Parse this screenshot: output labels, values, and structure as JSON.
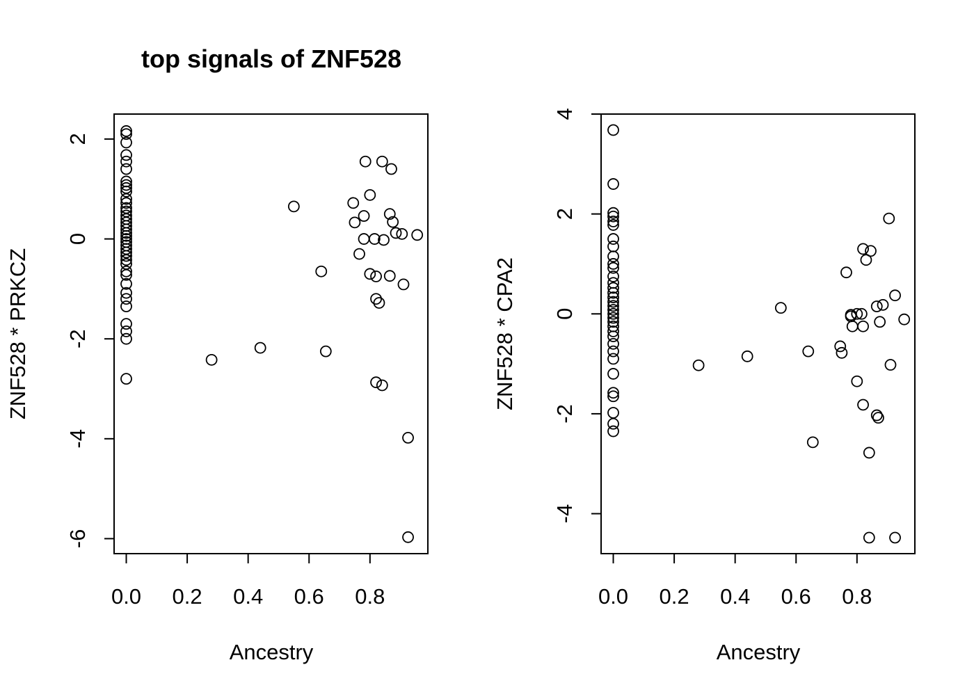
{
  "figure": {
    "title": "top signals of ZNF528"
  },
  "chart_data": [
    {
      "type": "scatter",
      "title": "top signals of ZNF528",
      "xlabel": "Ancestry",
      "ylabel": "ZNF528 * PRKCZ",
      "xlim": [
        -0.04,
        0.99
      ],
      "ylim": [
        -6.3,
        2.5
      ],
      "xticks": [
        0.0,
        0.2,
        0.4,
        0.6,
        0.8
      ],
      "xtick_labels": [
        "0.0",
        "0.2",
        "0.4",
        "0.6",
        "0.8"
      ],
      "yticks": [
        -6,
        -4,
        -2,
        0,
        2
      ],
      "ytick_labels": [
        "-6",
        "-4",
        "-2",
        "0",
        "2"
      ],
      "grid": false,
      "series": [
        {
          "points": [
            [
              0.0,
              2.16
            ],
            [
              0.0,
              2.1
            ],
            [
              0.0,
              1.93
            ],
            [
              0.0,
              1.68
            ],
            [
              0.0,
              1.55
            ],
            [
              0.0,
              1.4
            ],
            [
              0.0,
              1.15
            ],
            [
              0.0,
              1.08
            ],
            [
              0.0,
              1.02
            ],
            [
              0.0,
              0.95
            ],
            [
              0.0,
              0.8
            ],
            [
              0.0,
              0.72
            ],
            [
              0.0,
              0.62
            ],
            [
              0.0,
              0.55
            ],
            [
              0.0,
              0.47
            ],
            [
              0.0,
              0.4
            ],
            [
              0.0,
              0.33
            ],
            [
              0.0,
              0.26
            ],
            [
              0.0,
              0.19
            ],
            [
              0.0,
              0.12
            ],
            [
              0.0,
              0.06
            ],
            [
              0.0,
              0.0
            ],
            [
              0.0,
              -0.06
            ],
            [
              0.0,
              -0.13
            ],
            [
              0.0,
              -0.2
            ],
            [
              0.0,
              -0.27
            ],
            [
              0.0,
              -0.34
            ],
            [
              0.0,
              -0.42
            ],
            [
              0.0,
              -0.5
            ],
            [
              0.0,
              -0.65
            ],
            [
              0.0,
              -0.72
            ],
            [
              0.0,
              -0.9
            ],
            [
              0.0,
              -1.08
            ],
            [
              0.0,
              -1.2
            ],
            [
              0.0,
              -1.35
            ],
            [
              0.0,
              -1.7
            ],
            [
              0.0,
              -1.85
            ],
            [
              0.0,
              -2.0
            ],
            [
              0.0,
              -2.8
            ],
            [
              0.28,
              -2.42
            ],
            [
              0.44,
              -2.18
            ],
            [
              0.55,
              0.65
            ],
            [
              0.64,
              -0.65
            ],
            [
              0.655,
              -2.25
            ],
            [
              0.745,
              0.72
            ],
            [
              0.75,
              0.33
            ],
            [
              0.765,
              -0.3
            ],
            [
              0.78,
              0.46
            ],
            [
              0.78,
              0.0
            ],
            [
              0.785,
              1.55
            ],
            [
              0.8,
              0.88
            ],
            [
              0.8,
              -0.7
            ],
            [
              0.815,
              0.0
            ],
            [
              0.82,
              -0.75
            ],
            [
              0.82,
              -1.2
            ],
            [
              0.82,
              -2.87
            ],
            [
              0.83,
              -1.28
            ],
            [
              0.84,
              -2.93
            ],
            [
              0.84,
              1.55
            ],
            [
              0.845,
              -0.02
            ],
            [
              0.865,
              0.5
            ],
            [
              0.865,
              -0.74
            ],
            [
              0.87,
              1.4
            ],
            [
              0.875,
              0.34
            ],
            [
              0.885,
              0.12
            ],
            [
              0.905,
              0.1
            ],
            [
              0.91,
              -0.91
            ],
            [
              0.925,
              -3.98
            ],
            [
              0.925,
              -5.97
            ],
            [
              0.955,
              0.08
            ]
          ]
        }
      ]
    },
    {
      "type": "scatter",
      "title": "",
      "xlabel": "Ancestry",
      "ylabel": "ZNF528 * CPA2",
      "xlim": [
        -0.04,
        0.99
      ],
      "ylim": [
        -4.8,
        4.0
      ],
      "xticks": [
        0.0,
        0.2,
        0.4,
        0.6,
        0.8
      ],
      "xtick_labels": [
        "0.0",
        "0.2",
        "0.4",
        "0.6",
        "0.8"
      ],
      "yticks": [
        -4,
        -2,
        0,
        2,
        4
      ],
      "ytick_labels": [
        "-4",
        "-2",
        "0",
        "2",
        "4"
      ],
      "grid": false,
      "series": [
        {
          "points": [
            [
              0.0,
              3.68
            ],
            [
              0.0,
              2.6
            ],
            [
              0.0,
              2.02
            ],
            [
              0.0,
              1.95
            ],
            [
              0.0,
              1.85
            ],
            [
              0.0,
              1.78
            ],
            [
              0.0,
              1.5
            ],
            [
              0.0,
              1.35
            ],
            [
              0.0,
              1.15
            ],
            [
              0.0,
              1.0
            ],
            [
              0.0,
              0.92
            ],
            [
              0.0,
              0.75
            ],
            [
              0.0,
              0.62
            ],
            [
              0.0,
              0.52
            ],
            [
              0.0,
              0.42
            ],
            [
              0.0,
              0.33
            ],
            [
              0.0,
              0.24
            ],
            [
              0.0,
              0.16
            ],
            [
              0.0,
              0.08
            ],
            [
              0.0,
              0.0
            ],
            [
              0.0,
              -0.08
            ],
            [
              0.0,
              -0.16
            ],
            [
              0.0,
              -0.25
            ],
            [
              0.0,
              -0.35
            ],
            [
              0.0,
              -0.45
            ],
            [
              0.0,
              -0.6
            ],
            [
              0.0,
              -0.75
            ],
            [
              0.0,
              -0.9
            ],
            [
              0.0,
              -1.2
            ],
            [
              0.0,
              -1.58
            ],
            [
              0.0,
              -1.65
            ],
            [
              0.0,
              -1.98
            ],
            [
              0.0,
              -2.2
            ],
            [
              0.0,
              -2.35
            ],
            [
              0.28,
              -1.03
            ],
            [
              0.44,
              -0.85
            ],
            [
              0.55,
              0.12
            ],
            [
              0.64,
              -0.75
            ],
            [
              0.655,
              -2.57
            ],
            [
              0.745,
              -0.65
            ],
            [
              0.75,
              -0.78
            ],
            [
              0.765,
              0.83
            ],
            [
              0.78,
              -0.02
            ],
            [
              0.78,
              -0.05
            ],
            [
              0.785,
              -0.25
            ],
            [
              0.8,
              0.0
            ],
            [
              0.8,
              -1.35
            ],
            [
              0.815,
              0.0
            ],
            [
              0.82,
              -1.82
            ],
            [
              0.82,
              -0.25
            ],
            [
              0.82,
              1.3
            ],
            [
              0.83,
              1.08
            ],
            [
              0.84,
              -2.78
            ],
            [
              0.84,
              -4.48
            ],
            [
              0.845,
              1.26
            ],
            [
              0.865,
              0.15
            ],
            [
              0.865,
              -2.03
            ],
            [
              0.87,
              -2.08
            ],
            [
              0.875,
              -0.16
            ],
            [
              0.885,
              0.18
            ],
            [
              0.905,
              1.91
            ],
            [
              0.91,
              -1.02
            ],
            [
              0.925,
              0.37
            ],
            [
              0.925,
              -4.48
            ],
            [
              0.955,
              -0.11
            ]
          ]
        }
      ]
    }
  ]
}
